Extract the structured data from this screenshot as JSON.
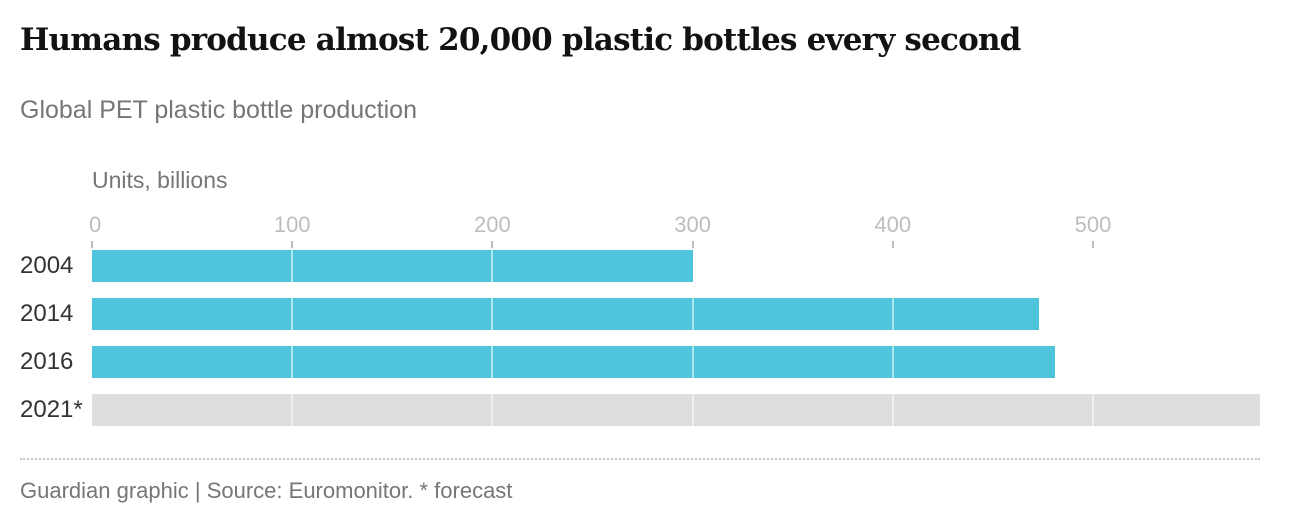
{
  "header": {
    "title": "Humans produce almost 20,000 plastic bottles every second",
    "subtitle": "Global PET plastic bottle production",
    "unit_label": "Units, billions"
  },
  "footer": {
    "text": "Guardian graphic | Source: Euromonitor. * forecast"
  },
  "colors": {
    "actual": "#4ec5dd",
    "forecast": "#dedede",
    "tick": "#bdbdbd"
  },
  "chart_data": {
    "type": "bar",
    "orientation": "horizontal",
    "title": "Humans produce almost 20,000 plastic bottles every second",
    "subtitle": "Global PET plastic bottle production",
    "xlabel": "Units, billions",
    "ylabel": "",
    "categories": [
      "2004",
      "2014",
      "2016",
      "2021*"
    ],
    "values": [
      300,
      473,
      481,
      583.3
    ],
    "forecast": [
      false,
      false,
      false,
      true
    ],
    "xlim": [
      0,
      583.3
    ],
    "xticks": [
      0,
      100,
      200,
      300,
      400,
      500
    ],
    "grid": true,
    "legend": null,
    "annotations": [
      "* forecast"
    ],
    "source": "Guardian graphic | Source: Euromonitor. * forecast"
  }
}
